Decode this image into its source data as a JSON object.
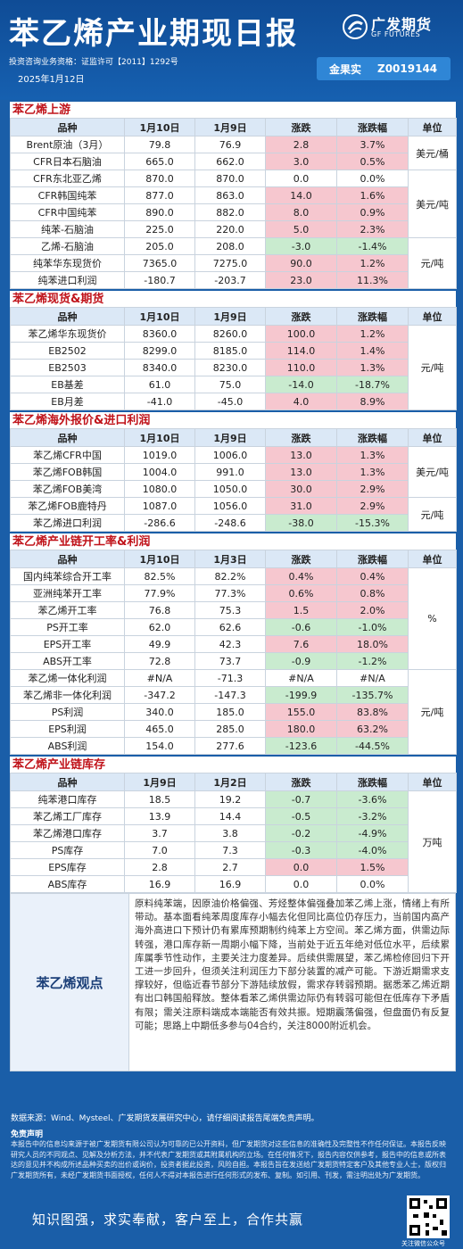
{
  "header": {
    "title": "苯乙烯产业期现日报",
    "logo_cn": "广发期货",
    "logo_en": "GF FUTURES",
    "qualification": "投资咨询业务资格：证监许可【2011】1292号",
    "date": "2025年1月12日",
    "author_name": "金果实",
    "author_id": "Z0019144"
  },
  "sections": {
    "upstream": {
      "title": "苯乙烯上游",
      "headers": [
        "品种",
        "1月10日",
        "1月9日",
        "涨跌",
        "涨跌幅",
        "单位"
      ],
      "rows": [
        {
          "name": "Brent原油（3月）",
          "v1": "79.8",
          "v2": "76.9",
          "chg": "2.8",
          "pct": "3.7%",
          "unit": "美元/桶"
        },
        {
          "name": "CFR日本石脑油",
          "v1": "665.0",
          "v2": "662.0",
          "chg": "3.0",
          "pct": "0.5%"
        },
        {
          "name": "CFR东北亚乙烯",
          "v1": "870.0",
          "v2": "870.0",
          "chg": "0.0",
          "pct": "0.0%"
        },
        {
          "name": "CFR韩国纯苯",
          "v1": "877.0",
          "v2": "863.0",
          "chg": "14.0",
          "pct": "1.6%",
          "unit": "美元/吨"
        },
        {
          "name": "CFR中国纯苯",
          "v1": "890.0",
          "v2": "882.0",
          "chg": "8.0",
          "pct": "0.9%"
        },
        {
          "name": "纯苯-石脑油",
          "v1": "225.0",
          "v2": "220.0",
          "chg": "5.0",
          "pct": "2.3%"
        },
        {
          "name": "乙烯-石脑油",
          "v1": "205.0",
          "v2": "208.0",
          "chg": "-3.0",
          "pct": "-1.4%"
        },
        {
          "name": "纯苯华东现货价",
          "v1": "7365.0",
          "v2": "7275.0",
          "chg": "90.0",
          "pct": "1.2%",
          "unit": "元/吨"
        },
        {
          "name": "纯苯进口利润",
          "v1": "-180.7",
          "v2": "-203.7",
          "chg": "23.0",
          "pct": "11.3%"
        }
      ]
    },
    "spot_futures": {
      "title": "苯乙烯现货&期货",
      "headers": [
        "品种",
        "1月10日",
        "1月9日",
        "涨跌",
        "涨跌幅",
        "单位"
      ],
      "rows": [
        {
          "name": "苯乙烯华东现货价",
          "v1": "8360.0",
          "v2": "8260.0",
          "chg": "100.0",
          "pct": "1.2%"
        },
        {
          "name": "EB2502",
          "v1": "8299.0",
          "v2": "8185.0",
          "chg": "114.0",
          "pct": "1.4%"
        },
        {
          "name": "EB2503",
          "v1": "8340.0",
          "v2": "8230.0",
          "chg": "110.0",
          "pct": "1.3%",
          "unit": "元/吨"
        },
        {
          "name": "EB基差",
          "v1": "61.0",
          "v2": "75.0",
          "chg": "-14.0",
          "pct": "-18.7%"
        },
        {
          "name": "EB月差",
          "v1": "-41.0",
          "v2": "-45.0",
          "chg": "4.0",
          "pct": "8.9%"
        }
      ]
    },
    "overseas": {
      "title": "苯乙烯海外报价&进口利润",
      "headers": [
        "品种",
        "1月10日",
        "1月9日",
        "涨跌",
        "涨跌幅",
        "单位"
      ],
      "rows": [
        {
          "name": "苯乙烯CFR中国",
          "v1": "1019.0",
          "v2": "1006.0",
          "chg": "13.0",
          "pct": "1.3%"
        },
        {
          "name": "苯乙烯FOB韩国",
          "v1": "1004.0",
          "v2": "991.0",
          "chg": "13.0",
          "pct": "1.3%",
          "unit": "美元/吨"
        },
        {
          "name": "苯乙烯FOB美湾",
          "v1": "1080.0",
          "v2": "1050.0",
          "chg": "30.0",
          "pct": "2.9%"
        },
        {
          "name": "苯乙烯FOB鹿特丹",
          "v1": "1087.0",
          "v2": "1056.0",
          "chg": "31.0",
          "pct": "2.9%"
        },
        {
          "name": "苯乙烯进口利润",
          "v1": "-286.6",
          "v2": "-248.6",
          "chg": "-38.0",
          "pct": "-15.3%",
          "unit": "元/吨"
        }
      ]
    },
    "operating": {
      "title": "苯乙烯产业链开工率&利润",
      "headers": [
        "品种",
        "1月10日",
        "1月3日",
        "涨跌",
        "涨跌幅",
        "单位"
      ],
      "rows": [
        {
          "name": "国内纯苯综合开工率",
          "v1": "82.5%",
          "v2": "82.2%",
          "chg": "0.4%",
          "pct": "0.4%"
        },
        {
          "name": "亚洲纯苯开工率",
          "v1": "77.9%",
          "v2": "77.3%",
          "chg": "0.6%",
          "pct": "0.8%"
        },
        {
          "name": "苯乙烯开工率",
          "v1": "76.8",
          "v2": "75.3",
          "chg": "1.5",
          "pct": "2.0%"
        },
        {
          "name": "PS开工率",
          "v1": "62.0",
          "v2": "62.6",
          "chg": "-0.6",
          "pct": "-1.0%",
          "unit": "%"
        },
        {
          "name": "EPS开工率",
          "v1": "49.9",
          "v2": "42.3",
          "chg": "7.6",
          "pct": "18.0%"
        },
        {
          "name": "ABS开工率",
          "v1": "72.8",
          "v2": "73.7",
          "chg": "-0.9",
          "pct": "-1.2%"
        },
        {
          "name": "苯乙烯一体化利润",
          "v1": "#N/A",
          "v2": "-71.3",
          "chg": "#N/A",
          "pct": "#N/A"
        },
        {
          "name": "苯乙烯非一体化利润",
          "v1": "-347.2",
          "v2": "-147.3",
          "chg": "-199.9",
          "pct": "-135.7%"
        },
        {
          "name": "PS利润",
          "v1": "340.0",
          "v2": "185.0",
          "chg": "155.0",
          "pct": "83.8%",
          "unit": "元/吨"
        },
        {
          "name": "EPS利润",
          "v1": "465.0",
          "v2": "285.0",
          "chg": "180.0",
          "pct": "63.2%"
        },
        {
          "name": "ABS利润",
          "v1": "154.0",
          "v2": "277.6",
          "chg": "-123.6",
          "pct": "-44.5%"
        }
      ]
    },
    "inventory": {
      "title": "苯乙烯产业链库存",
      "headers": [
        "品种",
        "1月9日",
        "1月2日",
        "涨跌",
        "涨跌幅",
        "单位"
      ],
      "rows": [
        {
          "name": "纯苯港口库存",
          "v1": "18.5",
          "v2": "19.2",
          "chg": "-0.7",
          "pct": "-3.6%"
        },
        {
          "name": "苯乙烯工厂库存",
          "v1": "13.9",
          "v2": "14.4",
          "chg": "-0.5",
          "pct": "-3.2%"
        },
        {
          "name": "苯乙烯港口库存",
          "v1": "3.7",
          "v2": "3.8",
          "chg": "-0.2",
          "pct": "-4.9%",
          "unit": "万吨"
        },
        {
          "name": "PS库存",
          "v1": "7.0",
          "v2": "7.3",
          "chg": "-0.3",
          "pct": "-4.0%"
        },
        {
          "name": "EPS库存",
          "v1": "2.8",
          "v2": "2.7",
          "chg": "0.0",
          "pct": "1.5%"
        },
        {
          "name": "ABS库存",
          "v1": "16.9",
          "v2": "16.9",
          "chg": "0.0",
          "pct": "0.0%"
        }
      ]
    }
  },
  "view": {
    "label": "苯乙烯观点",
    "text": "原料纯苯端，因原油价格偏强、芳烃整体偏强叠加苯乙烯上涨，情绪上有所带动。基本面看纯苯周度库存小幅去化但同比高位仍存压力，当前国内高产海外高进口下预计仍有累库预期制约纯苯上方空间。苯乙烯方面，供需边际转强，港口库存新一周期小幅下降，当前处于近五年绝对低位水平，后续累库属季节性动作，主要关注力度差异。后续供需展望，苯乙烯检修回归下开工进一步回升，但须关注利润压力下部分装置的减产可能。下游近期需求支撑较好，但临近春节部分下游陆续放假，需求存转弱预期。据悉苯乙烯近期有出口韩国船释放。整体看苯乙烯供需边际仍有转弱可能但在低库存下矛盾有限；需关注原料端成本端能否有效共振。短期震荡偏强，但盘面仍有反复可能；思路上中期低多参与04合约，关注8000附近机会。"
  },
  "footer": {
    "source": "数据来源：Wind、Mysteel、广发期货发展研究中心，请仔细阅读报告尾端免责声明。",
    "disclaimer_title": "免责声明",
    "disclaimer": "本报告中的信息均来源于被广发期货有限公司认为可靠的已公开资料，但广发期货对这些信息的准确性及完整性不作任何保证。本报告反映研究人员的不同观点、见解及分析方法，并不代表广发期货或其附属机构的立场。在任何情况下，报告内容仅供参考，报告中的信息或所表达的意见并不构成所述品种买卖的出价或询价，投资者据此投资，风险自担。本报告旨在发送给广发期货特定客户及其他专业人士，版权归广发期货所有，未经广发期货书面授权，任何人不得对本报告进行任何形式的发布、复制。如引用、刊发，需注明出处为广发期货。",
    "slogan": "知识图强，求实奉献，客户至上，合作共赢",
    "qr_caption": "关注微信公众号"
  },
  "colors": {
    "header_bg": "#1660b0",
    "rise": "#f6c7cf",
    "fall": "#c9ebcf",
    "section_title": "#c0131a"
  }
}
